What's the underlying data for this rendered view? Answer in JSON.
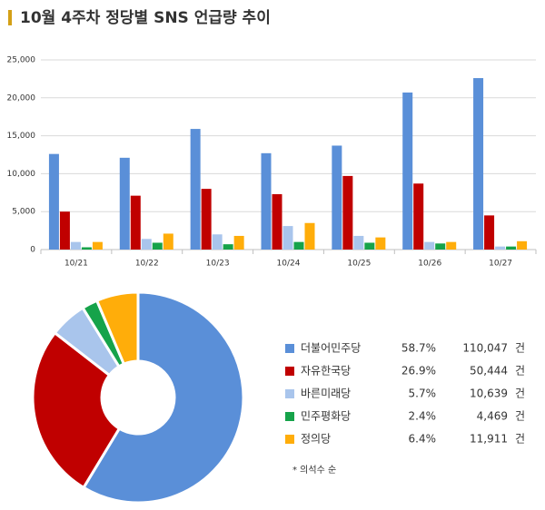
{
  "title": "10월 4주차 정당별 SNS 언급량 추이",
  "chart_data": [
    {
      "type": "bar",
      "categories": [
        "10/21",
        "10/22",
        "10/23",
        "10/24",
        "10/25",
        "10/26",
        "10/27"
      ],
      "series": [
        {
          "name": "더불어민주당",
          "color": "#5a8fd8",
          "values": [
            12600,
            12100,
            15900,
            12700,
            13700,
            20700,
            22600
          ]
        },
        {
          "name": "자유한국당",
          "color": "#c00000",
          "values": [
            5000,
            7100,
            8000,
            7300,
            9700,
            8700,
            4500
          ]
        },
        {
          "name": "바른미래당",
          "color": "#a9c5ec",
          "values": [
            1000,
            1400,
            2000,
            3100,
            1800,
            1000,
            400
          ]
        },
        {
          "name": "민주평화당",
          "color": "#16a34a",
          "values": [
            300,
            900,
            700,
            1000,
            900,
            800,
            400
          ]
        },
        {
          "name": "정의당",
          "color": "#ffad0a",
          "values": [
            1000,
            2100,
            1800,
            3500,
            1600,
            1000,
            1100
          ]
        }
      ],
      "ylim": [
        0,
        25000
      ],
      "yticks": [
        0,
        {
          "value": 5000,
          "label": "5,000"
        },
        {
          "value": 10000,
          "label": "10,000"
        },
        {
          "value": 15000,
          "label": "15,000"
        },
        {
          "value": 20000,
          "label": "20,000"
        },
        {
          "value": 25000,
          "label": "25,000"
        }
      ],
      "grid": true
    },
    {
      "type": "pie",
      "categories": [
        "더불어민주당",
        "자유한국당",
        "바른미래당",
        "민주평화당",
        "정의당"
      ],
      "colors": [
        "#5a8fd8",
        "#c00000",
        "#a9c5ec",
        "#16a34a",
        "#ffad0a"
      ],
      "values": [
        58.7,
        26.9,
        5.7,
        2.4,
        6.4
      ],
      "value_labels": [
        "58.7%",
        "26.9%",
        "5.7%",
        "2.4%",
        "6.4%"
      ],
      "counts": [
        110047,
        50444,
        10639,
        4469,
        11911
      ],
      "count_labels": [
        "110,047",
        "50,444",
        "10,639",
        "4,469",
        "11,911"
      ],
      "count_unit": "건",
      "note": "* 의석수 순"
    }
  ]
}
